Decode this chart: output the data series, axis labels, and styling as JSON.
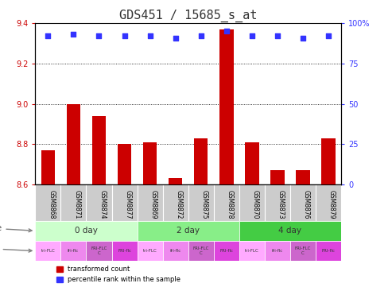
{
  "title": "GDS451 / 15685_s_at",
  "samples": [
    "GSM8868",
    "GSM8871",
    "GSM8874",
    "GSM8877",
    "GSM8869",
    "GSM8872",
    "GSM8875",
    "GSM8878",
    "GSM8870",
    "GSM8873",
    "GSM8876",
    "GSM8879"
  ],
  "transformed_counts": [
    8.77,
    9.0,
    8.94,
    8.8,
    8.81,
    8.63,
    8.83,
    9.37,
    8.81,
    8.67,
    8.67,
    8.83
  ],
  "percentile_ranks": [
    92,
    93,
    92,
    92,
    92,
    91,
    92,
    95,
    92,
    92,
    91,
    92
  ],
  "ylim_left": [
    8.6,
    9.4
  ],
  "ylim_right": [
    0,
    100
  ],
  "yticks_left": [
    8.6,
    8.8,
    9.0,
    9.2,
    9.4
  ],
  "yticks_right": [
    0,
    25,
    50,
    75,
    100
  ],
  "ytick_right_labels": [
    "0",
    "25",
    "50",
    "75",
    "100%"
  ],
  "bar_color": "#cc0000",
  "dot_color": "#3333ff",
  "time_groups": [
    {
      "label": "0 day",
      "start": 0,
      "end": 4,
      "color": "#ccffcc"
    },
    {
      "label": "2 day",
      "start": 4,
      "end": 8,
      "color": "#88ee88"
    },
    {
      "label": "4 day",
      "start": 8,
      "end": 12,
      "color": "#44cc44"
    }
  ],
  "strain_labels": [
    "tri-FLC",
    "fri-flc",
    "FRI-FLC\nC",
    "FRI-flc",
    "tri-FLC",
    "fri-flc",
    "FRI-FLC\nC",
    "FRI-flc",
    "tri-FLC",
    "fri-flc",
    "FRI-FLC\nC",
    "FRI-flc"
  ],
  "strain_colors": [
    "#ffaaff",
    "#ee88ee",
    "#cc66cc",
    "#dd44dd",
    "#ffaaff",
    "#ee88ee",
    "#cc66cc",
    "#dd44dd",
    "#ffaaff",
    "#ee88ee",
    "#cc66cc",
    "#dd44dd"
  ],
  "sample_box_color": "#cccccc",
  "bg_color": "#ffffff",
  "grid_color": "#000000",
  "title_fontsize": 11,
  "tick_fontsize": 7,
  "bar_width": 0.55
}
